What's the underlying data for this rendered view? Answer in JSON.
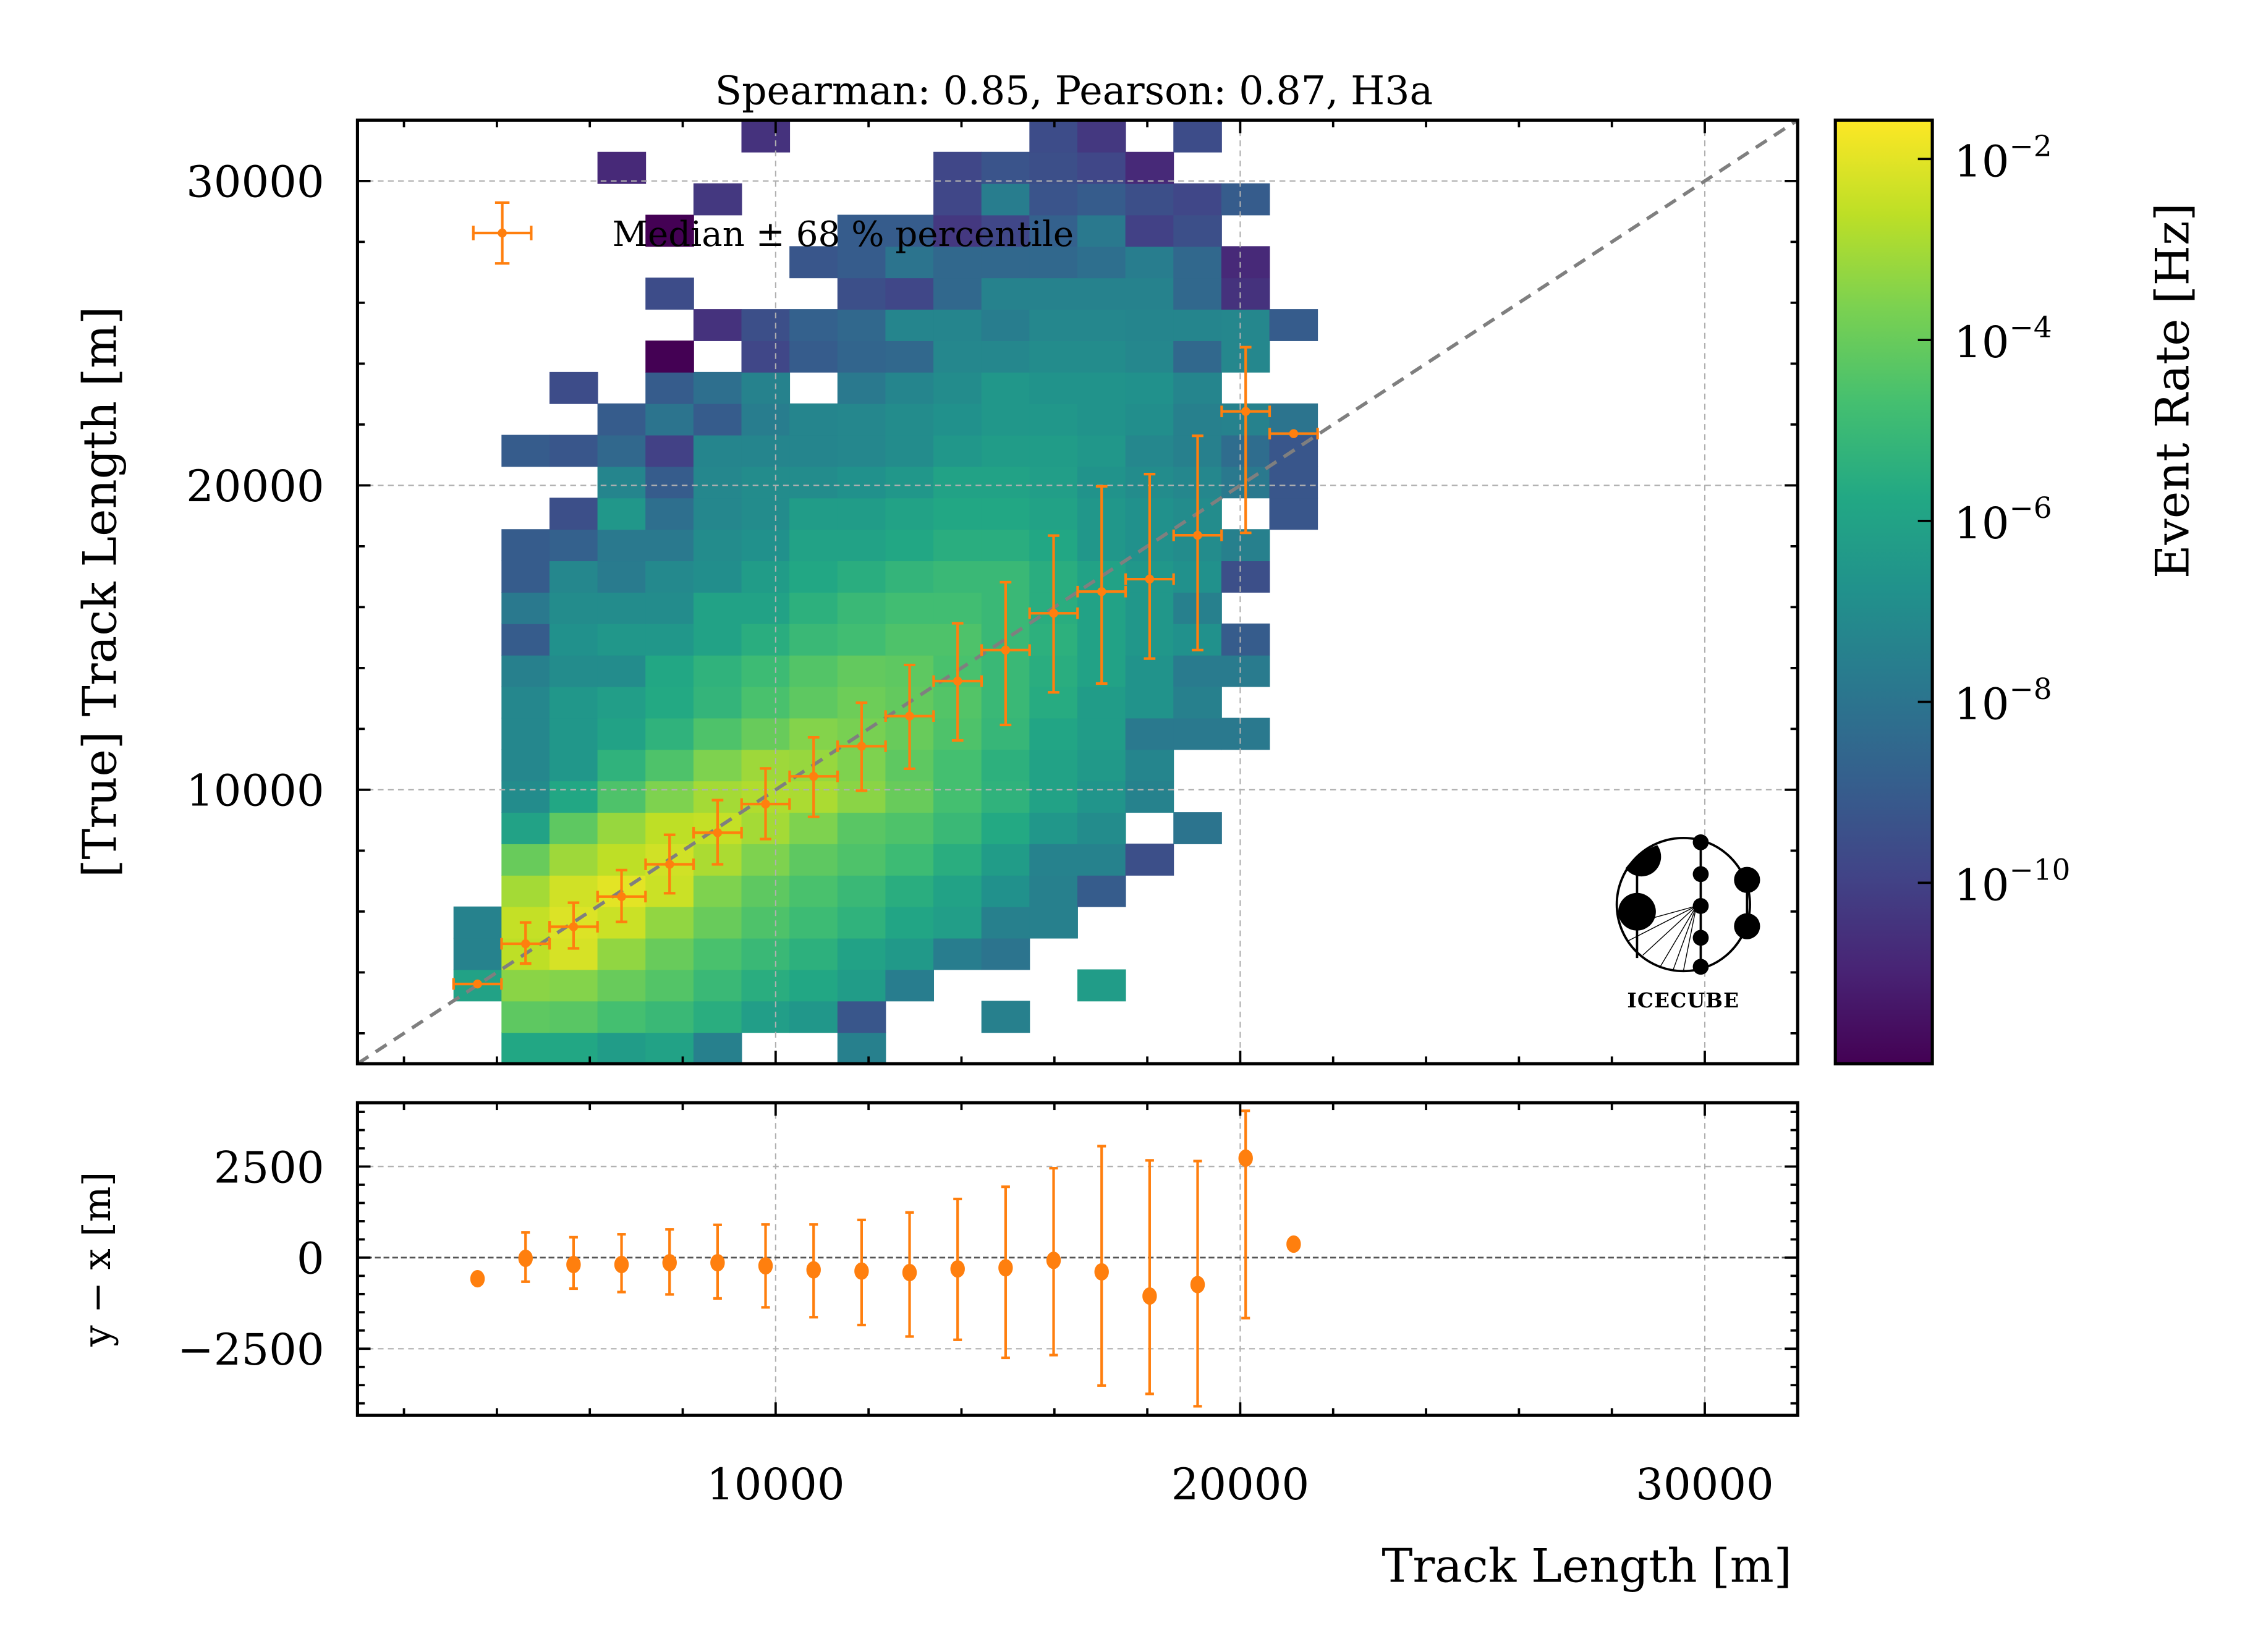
{
  "chart_data": [
    {
      "type": "heatmap",
      "panel": "main",
      "title": "Spearman: 0.85, Pearson: 0.87, H3a",
      "xlabel": "Track Length [m]",
      "ylabel": "[True] Track Length [m]",
      "xlim": [
        1000,
        32000
      ],
      "ylim": [
        1000,
        32000
      ],
      "xticks": [
        10000,
        20000,
        30000
      ],
      "yticks": [
        10000,
        20000,
        30000
      ],
      "ytick_labels": [
        "10000",
        "20000",
        "30000"
      ],
      "grid": true,
      "bin_edges_start": 1000,
      "bin_width": 1033,
      "x_bin_first_index": 2,
      "x_bin_count": 18,
      "colorbar": {
        "label": "Event Rate [Hz]",
        "scale": "log",
        "log10_range": [
          -12.0,
          -1.57
        ],
        "colormap": "viridis",
        "ticks": [
          {
            "log10": -2,
            "base": "10",
            "exp": "−2"
          },
          {
            "log10": -4,
            "base": "10",
            "exp": "−4"
          },
          {
            "log10": -6,
            "base": "10",
            "exp": "−6"
          },
          {
            "log10": -8,
            "base": "10",
            "exp": "−8"
          },
          {
            "log10": -10,
            "base": "10",
            "exp": "−10"
          }
        ]
      },
      "log10_rate_rows_bottom_to_top": [
        [
          null,
          -5.8,
          -5.8,
          -6.3,
          -6.0,
          -7.5,
          null,
          null,
          -7.5,
          null,
          null,
          null,
          null,
          null,
          null,
          null,
          null,
          null
        ],
        [
          null,
          -4.2,
          -4.3,
          -4.7,
          -5.0,
          -5.5,
          -6.2,
          -6.5,
          -9.2,
          null,
          null,
          -7.5,
          null,
          null,
          null,
          null,
          null,
          null
        ],
        [
          -6.0,
          -3.4,
          -3.5,
          -4.0,
          -4.4,
          -5.0,
          -5.5,
          -5.8,
          -6.3,
          -7.6,
          null,
          null,
          null,
          -6.3,
          null,
          null,
          null,
          null
        ],
        [
          -7.4,
          -2.6,
          -2.2,
          -3.3,
          -4.0,
          -4.6,
          -5.0,
          -5.4,
          -6.0,
          -6.4,
          -7.6,
          -8.0,
          null,
          null,
          null,
          null,
          null,
          null
        ],
        [
          -7.4,
          -2.5,
          -2.1,
          -2.4,
          -3.3,
          -4.0,
          -4.5,
          -4.9,
          -5.3,
          -5.9,
          -6.2,
          -7.5,
          -7.5,
          null,
          null,
          null,
          null,
          null
        ],
        [
          null,
          -3.0,
          -2.3,
          -2.0,
          -2.4,
          -3.6,
          -4.2,
          -4.6,
          -5.0,
          -5.5,
          -6.0,
          -6.8,
          -7.5,
          -9.0,
          null,
          null,
          null,
          null
        ],
        [
          null,
          -4.0,
          -3.1,
          -2.6,
          -2.3,
          -2.9,
          -3.6,
          -4.2,
          -4.5,
          -4.9,
          -5.5,
          -6.3,
          -7.4,
          -7.4,
          -9.5,
          null,
          null,
          null
        ],
        [
          null,
          -6.0,
          -4.2,
          -3.2,
          -2.6,
          -2.5,
          -3.0,
          -3.6,
          -4.3,
          -4.5,
          -5.0,
          -5.7,
          -6.5,
          -7.0,
          null,
          -8.0,
          null,
          null
        ],
        [
          null,
          -7.0,
          -5.8,
          -4.5,
          -3.6,
          -3.0,
          -2.8,
          -2.9,
          -3.4,
          -4.0,
          -4.7,
          -5.3,
          -6.0,
          -6.6,
          -7.4,
          null,
          null,
          null
        ],
        [
          null,
          -7.2,
          -6.5,
          -5.3,
          -4.5,
          -3.6,
          -3.1,
          -3.2,
          -3.6,
          -4.2,
          -4.7,
          -5.4,
          -6.0,
          -6.4,
          -7.3,
          null,
          null,
          null
        ],
        [
          null,
          -7.2,
          -6.5,
          -6.0,
          -5.3,
          -4.5,
          -4.0,
          -3.5,
          -3.7,
          -4.0,
          -4.5,
          -5.1,
          -5.9,
          -6.3,
          -7.8,
          -7.8,
          -7.8,
          null
        ],
        [
          null,
          -7.2,
          -6.5,
          -6.2,
          -5.7,
          -5.2,
          -4.6,
          -4.2,
          -3.9,
          -4.1,
          -4.4,
          -5.0,
          -5.6,
          -6.3,
          -6.7,
          -7.5,
          null,
          null
        ],
        [
          null,
          -7.5,
          -7.0,
          -7.0,
          -5.8,
          -5.3,
          -4.9,
          -4.4,
          -4.1,
          -4.2,
          -4.6,
          -5.0,
          -5.5,
          -6.0,
          -6.7,
          -7.7,
          -7.7,
          null
        ],
        [
          null,
          -9.0,
          -6.8,
          -6.5,
          -6.5,
          -6.0,
          -5.5,
          -5.0,
          -4.8,
          -4.5,
          -4.5,
          -5.0,
          -5.4,
          -6.0,
          -6.5,
          -6.8,
          -9.0,
          null
        ],
        [
          null,
          -7.8,
          -7.0,
          -7.0,
          -7.0,
          -6.0,
          -6.0,
          -5.4,
          -5.0,
          -4.8,
          -4.8,
          -5.0,
          -5.5,
          -6.0,
          -6.5,
          -7.5,
          null,
          null
        ],
        [
          null,
          -9.0,
          -7.2,
          -7.7,
          -7.1,
          -6.9,
          -6.3,
          -5.8,
          -5.5,
          -5.2,
          -5.0,
          -5.0,
          -5.5,
          -6.0,
          -6.5,
          -6.8,
          -9.5,
          null
        ],
        [
          null,
          -9.0,
          -8.8,
          -7.8,
          -7.8,
          -7.0,
          -6.8,
          -6.0,
          -6.0,
          -5.8,
          -5.5,
          -5.5,
          -5.8,
          -6.5,
          -6.8,
          -7.0,
          -7.5,
          null
        ],
        [
          null,
          null,
          -9.5,
          -6.5,
          -8.2,
          -7.2,
          -7.0,
          -6.3,
          -6.3,
          -6.0,
          -5.8,
          -5.8,
          -6.0,
          -6.5,
          -6.8,
          -7.0,
          null,
          -9.2
        ],
        [
          null,
          null,
          null,
          -7.3,
          -9.0,
          -7.2,
          -7.0,
          -7.0,
          -6.8,
          -6.5,
          -6.0,
          -6.0,
          -6.2,
          -6.7,
          -7.0,
          -7.2,
          -7.8,
          -9.2
        ],
        [
          null,
          -9.0,
          -9.2,
          -8.5,
          -10.0,
          -7.3,
          -7.3,
          -7.3,
          -7.2,
          -7.0,
          -6.5,
          -6.3,
          -6.3,
          -6.5,
          -7.2,
          -7.5,
          -8.3,
          -9.2
        ],
        [
          null,
          null,
          null,
          -9.0,
          -8.0,
          -9.0,
          -7.6,
          -7.3,
          -7.2,
          -7.0,
          -6.8,
          -6.5,
          -6.5,
          -6.7,
          -6.9,
          -7.5,
          -7.4,
          -8.0
        ],
        [
          null,
          null,
          -9.6,
          null,
          -9.0,
          -8.2,
          -7.4,
          null,
          -7.8,
          -7.3,
          -7.0,
          -6.5,
          -6.7,
          -6.7,
          -6.8,
          -7.3,
          null,
          null
        ],
        [
          null,
          null,
          null,
          null,
          -12.0,
          null,
          -9.8,
          -9.0,
          -8.6,
          -8.5,
          -7.2,
          -7.2,
          -7.0,
          -7.0,
          -7.2,
          -8.5,
          -7.2,
          null
        ],
        [
          null,
          null,
          null,
          null,
          null,
          -10.5,
          -9.5,
          -8.8,
          -8.5,
          -7.3,
          -7.3,
          -7.6,
          -7.2,
          -7.2,
          -7.3,
          -7.3,
          -7.2,
          -9.0
        ],
        [
          null,
          null,
          null,
          null,
          -9.6,
          null,
          null,
          null,
          -9.5,
          -9.8,
          -8.5,
          -7.4,
          -7.4,
          -7.4,
          -7.4,
          -8.5,
          -10.5,
          null
        ],
        [
          null,
          null,
          null,
          null,
          null,
          null,
          null,
          -9.2,
          -9.0,
          -8.0,
          -8.5,
          -8.5,
          -8.5,
          -8.2,
          -7.6,
          -8.5,
          -10.8,
          null
        ],
        [
          null,
          null,
          null,
          null,
          -12.0,
          null,
          null,
          null,
          -9.0,
          -9.0,
          -10.3,
          -9.8,
          -8.8,
          -7.8,
          -10.0,
          -9.5,
          null,
          null
        ],
        [
          null,
          null,
          null,
          null,
          null,
          -10.3,
          null,
          null,
          null,
          null,
          -9.8,
          -7.6,
          -9.3,
          -9.0,
          -9.5,
          -9.8,
          -9.0,
          null
        ],
        [
          null,
          null,
          null,
          -10.8,
          null,
          null,
          null,
          null,
          null,
          null,
          -9.8,
          -9.3,
          -9.5,
          -9.8,
          -10.8,
          null,
          null,
          null
        ],
        [
          null,
          null,
          null,
          null,
          null,
          null,
          -10.5,
          null,
          null,
          null,
          null,
          null,
          -9.6,
          -10.3,
          null,
          -9.6,
          null,
          null
        ]
      ],
      "diagonal": "y = x",
      "legend": {
        "label": "Median ± 68 % percentile",
        "position": "top-left"
      },
      "medians": {
        "x": [
          3583,
          4617,
          5650,
          6683,
          7717,
          8750,
          9783,
          10817,
          11850,
          12883,
          13917,
          14950,
          15983,
          17017,
          18050,
          19083,
          20117,
          21150
        ],
        "x_halfwidth": 516,
        "y": [
          3620,
          4940,
          5500,
          6490,
          7550,
          8590,
          9530,
          10440,
          11430,
          12420,
          13570,
          14590,
          15800,
          16510,
          16920,
          18360,
          22430,
          21700
        ],
        "y_low": [
          3620,
          4290,
          4790,
          5660,
          6600,
          7550,
          8380,
          9110,
          9970,
          10690,
          11620,
          12130,
          13200,
          13490,
          14310,
          14590,
          18440,
          21700
        ],
        "y_high": [
          3620,
          5640,
          6290,
          7360,
          8520,
          9660,
          10700,
          11720,
          12860,
          14100,
          15470,
          16820,
          18350,
          19970,
          20370,
          21630,
          24540,
          21700
        ]
      }
    },
    {
      "type": "scatter",
      "panel": "residual",
      "xlabel": "Track Length [m]",
      "ylabel": "y − x [m]",
      "xlim": [
        1000,
        32000
      ],
      "ylim": [
        -4330,
        4250
      ],
      "xticks": [
        10000,
        20000,
        30000
      ],
      "xtick_labels": [
        "10000",
        "20000",
        "30000"
      ],
      "yticks": [
        2500,
        0,
        -2500
      ],
      "ytick_labels": [
        "2500",
        "0",
        "−2500"
      ],
      "grid": true,
      "x": [
        3583,
        4617,
        5650,
        6683,
        7717,
        8750,
        9783,
        10817,
        11850,
        12883,
        13917,
        14950,
        15983,
        17017,
        18050,
        19083,
        20117,
        21150
      ],
      "y": [
        -580,
        -20,
        -190,
        -190,
        -140,
        -140,
        -225,
        -335,
        -370,
        -410,
        -310,
        -280,
        -75,
        -390,
        -1055,
        -740,
        2730,
        370
      ],
      "y_low": [
        -580,
        -660,
        -850,
        -945,
        -1010,
        -1120,
        -1365,
        -1635,
        -1850,
        -2165,
        -2255,
        -2750,
        -2675,
        -3510,
        -3740,
        -4080,
        -1660,
        300
      ],
      "y_high": [
        -580,
        690,
        560,
        640,
        775,
        900,
        910,
        910,
        1035,
        1240,
        1610,
        1945,
        2455,
        3060,
        2670,
        2650,
        4030,
        440
      ]
    }
  ],
  "logo": {
    "text": "ICECUBE"
  },
  "colors": {
    "median": "#ff7f0e",
    "diagonal": "#7f7f7f",
    "grid": "#b0b0b0"
  }
}
